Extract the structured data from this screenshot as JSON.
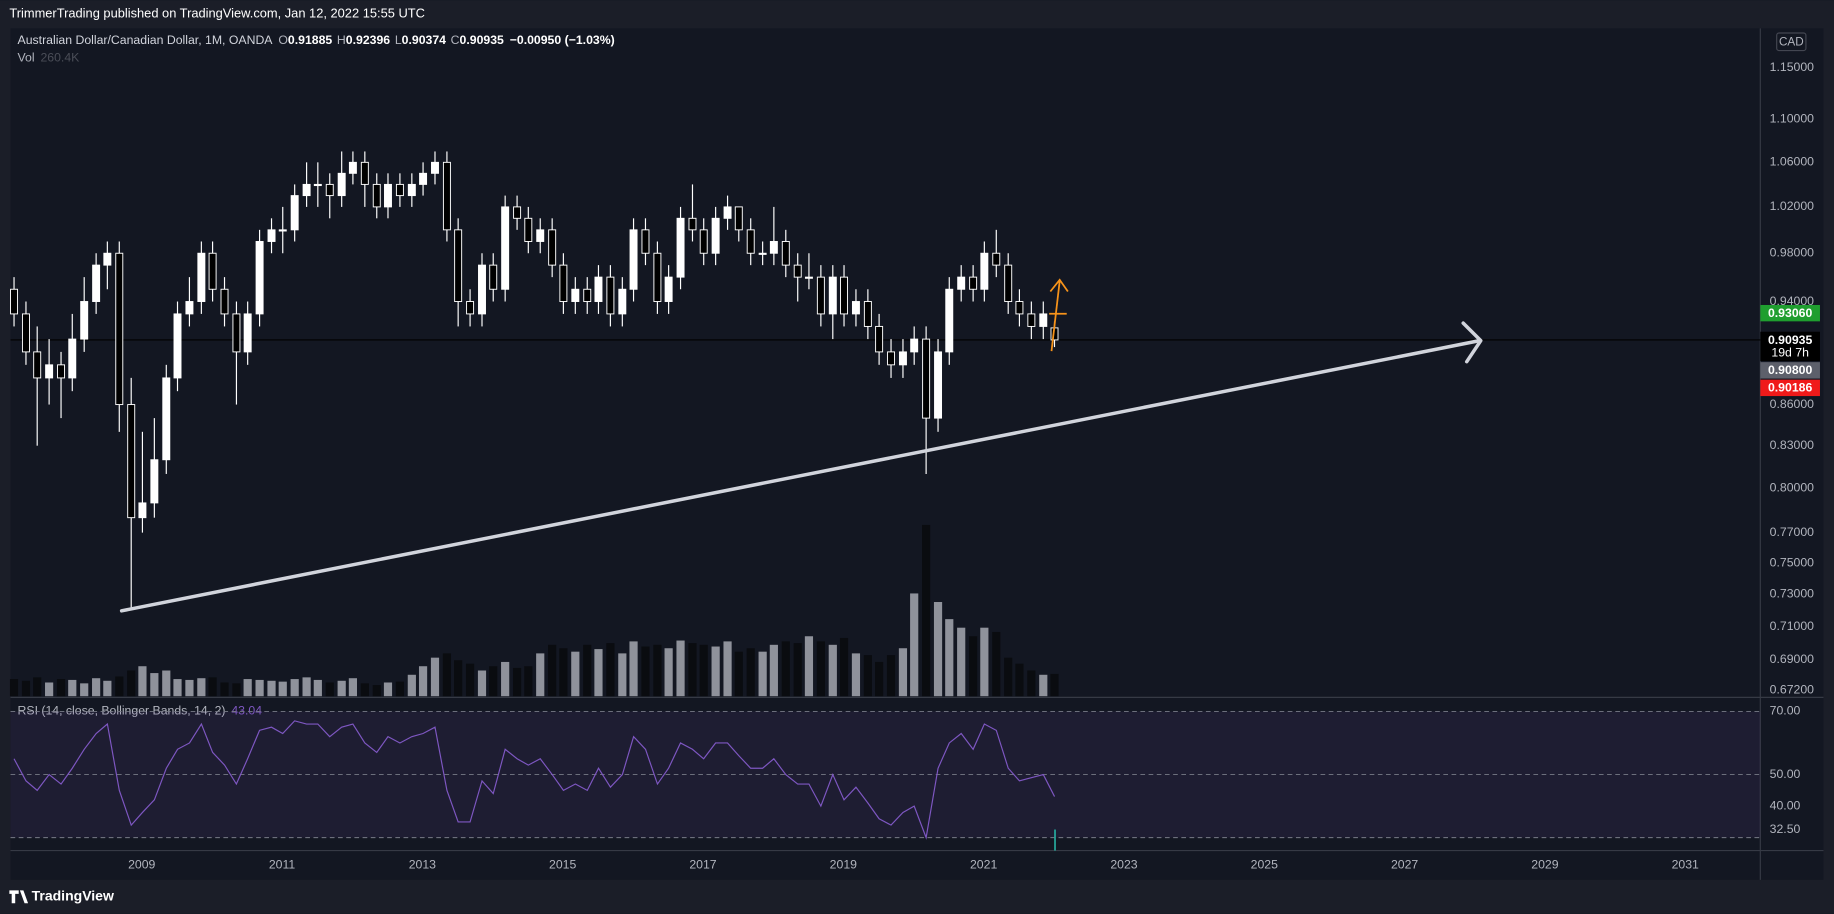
{
  "header": {
    "published": "TrimmerTrading published on TradingView.com, Jan 12, 2022 15:55 UTC"
  },
  "footer": {
    "brand": "TradingView"
  },
  "chart_data": {
    "type": "candlestick",
    "title": "Australian Dollar/Canadian Dollar, 1M, OANDA",
    "ohlc_labels": [
      "O",
      "H",
      "L",
      "C"
    ],
    "change_label": "−0.00950 (−1.03%)",
    "currency": "CAD",
    "countdown": "19d 7h",
    "up_color": "#ffffff",
    "down_color": "#000000",
    "wick_color": "#ffffff",
    "log_scale": true,
    "grid": false,
    "xlim": [
      2007.13,
      2032.07
    ],
    "xticks": [
      2009,
      2011,
      2013,
      2015,
      2017,
      2019,
      2021,
      2023,
      2025,
      2027,
      2029,
      2031
    ],
    "ylim": [
      0.6686,
      1.19
    ],
    "yticks": [
      {
        "value": 1.15,
        "label": "1.15000"
      },
      {
        "value": 1.1,
        "label": "1.10000"
      },
      {
        "value": 1.06,
        "label": "1.06000"
      },
      {
        "value": 1.02,
        "label": "1.02000"
      },
      {
        "value": 0.98,
        "label": "0.98000"
      },
      {
        "value": 0.94,
        "label": "0.94000"
      },
      {
        "value": 0.86,
        "label": "0.86000"
      },
      {
        "value": 0.83,
        "label": "0.83000"
      },
      {
        "value": 0.8,
        "label": "0.80000"
      },
      {
        "value": 0.77,
        "label": "0.77000"
      },
      {
        "value": 0.75,
        "label": "0.75000"
      },
      {
        "value": 0.73,
        "label": "0.73000"
      },
      {
        "value": 0.71,
        "label": "0.71000"
      },
      {
        "value": 0.69,
        "label": "0.69000"
      },
      {
        "value": 0.672,
        "label": "0.67200"
      }
    ],
    "price_labels": [
      {
        "value": 0.9306,
        "label": "0.93060",
        "color": "#1f9e2f"
      },
      {
        "value": 0.908,
        "label": "0.90800",
        "color": "#5d606b"
      },
      {
        "value": 0.90186,
        "label": "0.90186",
        "color": "#f01a1a"
      }
    ],
    "x": [
      2007.18,
      2007.35,
      2007.51,
      2007.68,
      2007.85,
      2008.01,
      2008.18,
      2008.35,
      2008.51,
      2008.68,
      2008.85,
      2009.01,
      2009.18,
      2009.35,
      2009.51,
      2009.68,
      2009.85,
      2010.01,
      2010.18,
      2010.35,
      2010.51,
      2010.68,
      2010.85,
      2011.01,
      2011.18,
      2011.35,
      2011.51,
      2011.68,
      2011.85,
      2012.01,
      2012.18,
      2012.35,
      2012.51,
      2012.68,
      2012.85,
      2013.01,
      2013.18,
      2013.35,
      2013.51,
      2013.68,
      2013.85,
      2014.01,
      2014.18,
      2014.35,
      2014.51,
      2014.68,
      2014.85,
      2015.01,
      2015.18,
      2015.35,
      2015.51,
      2015.68,
      2015.85,
      2016.01,
      2016.18,
      2016.35,
      2016.51,
      2016.68,
      2016.85,
      2017.01,
      2017.18,
      2017.35,
      2017.51,
      2017.68,
      2017.85,
      2018.01,
      2018.18,
      2018.35,
      2018.51,
      2018.68,
      2018.85,
      2019.01,
      2019.18,
      2019.35,
      2019.51,
      2019.68,
      2019.85,
      2020.01,
      2020.18,
      2020.35,
      2020.51,
      2020.68,
      2020.85,
      2021.01,
      2021.18,
      2021.35,
      2021.51,
      2021.68,
      2021.85,
      2022.01
    ],
    "open": [
      0.95,
      0.93,
      0.9,
      0.88,
      0.89,
      0.88,
      0.91,
      0.94,
      0.97,
      0.98,
      0.86,
      0.78,
      0.79,
      0.82,
      0.88,
      0.93,
      0.94,
      0.98,
      0.95,
      0.93,
      0.9,
      0.93,
      0.99,
      1.0,
      1.0,
      1.03,
      1.04,
      1.04,
      1.03,
      1.05,
      1.06,
      1.04,
      1.02,
      1.04,
      1.03,
      1.04,
      1.05,
      1.06,
      1.0,
      0.94,
      0.93,
      0.97,
      0.95,
      1.02,
      1.01,
      0.99,
      1.0,
      0.97,
      0.94,
      0.95,
      0.94,
      0.96,
      0.93,
      0.95,
      1.0,
      0.98,
      0.94,
      0.96,
      1.01,
      1.0,
      0.98,
      1.01,
      1.02,
      1.0,
      0.98,
      0.98,
      0.99,
      0.97,
      0.96,
      0.96,
      0.93,
      0.96,
      0.93,
      0.94,
      0.92,
      0.9,
      0.89,
      0.9,
      0.91,
      0.85,
      0.9,
      0.95,
      0.96,
      0.95,
      0.98,
      0.97,
      0.94,
      0.93,
      0.92,
      0.91885
    ],
    "high": [
      0.96,
      0.94,
      0.92,
      0.91,
      0.9,
      0.93,
      0.96,
      0.98,
      0.99,
      0.99,
      0.88,
      0.84,
      0.85,
      0.89,
      0.94,
      0.96,
      0.99,
      0.99,
      0.96,
      0.94,
      0.94,
      1.0,
      1.01,
      1.02,
      1.04,
      1.06,
      1.06,
      1.05,
      1.07,
      1.07,
      1.07,
      1.05,
      1.05,
      1.05,
      1.05,
      1.06,
      1.07,
      1.07,
      1.01,
      0.95,
      0.98,
      0.98,
      1.03,
      1.03,
      1.02,
      1.01,
      1.01,
      0.98,
      0.96,
      0.96,
      0.97,
      0.97,
      0.96,
      1.01,
      1.01,
      0.99,
      0.97,
      1.02,
      1.04,
      1.01,
      1.02,
      1.03,
      1.02,
      1.01,
      0.99,
      1.02,
      1.0,
      0.98,
      0.98,
      0.97,
      0.97,
      0.97,
      0.95,
      0.95,
      0.93,
      0.91,
      0.91,
      0.92,
      0.92,
      0.91,
      0.96,
      0.97,
      0.97,
      0.99,
      1.0,
      0.98,
      0.95,
      0.94,
      0.94,
      0.92396
    ],
    "low": [
      0.92,
      0.89,
      0.83,
      0.86,
      0.85,
      0.87,
      0.9,
      0.93,
      0.95,
      0.84,
      0.72,
      0.77,
      0.78,
      0.81,
      0.87,
      0.92,
      0.93,
      0.94,
      0.92,
      0.86,
      0.89,
      0.92,
      0.98,
      0.98,
      0.99,
      1.02,
      1.02,
      1.01,
      1.02,
      1.04,
      1.02,
      1.01,
      1.01,
      1.02,
      1.02,
      1.03,
      1.04,
      0.99,
      0.92,
      0.92,
      0.92,
      0.94,
      0.94,
      1.0,
      0.98,
      0.98,
      0.96,
      0.93,
      0.93,
      0.93,
      0.93,
      0.92,
      0.92,
      0.94,
      0.97,
      0.93,
      0.93,
      0.95,
      0.99,
      0.97,
      0.97,
      1.0,
      0.99,
      0.97,
      0.97,
      0.97,
      0.96,
      0.94,
      0.95,
      0.92,
      0.91,
      0.92,
      0.92,
      0.91,
      0.89,
      0.88,
      0.88,
      0.89,
      0.81,
      0.84,
      0.89,
      0.94,
      0.94,
      0.94,
      0.96,
      0.93,
      0.92,
      0.91,
      0.91,
      0.90374
    ],
    "close": [
      0.93,
      0.9,
      0.88,
      0.89,
      0.88,
      0.91,
      0.94,
      0.97,
      0.98,
      0.86,
      0.78,
      0.79,
      0.82,
      0.88,
      0.93,
      0.94,
      0.98,
      0.95,
      0.93,
      0.9,
      0.93,
      0.99,
      1.0,
      1.0,
      1.03,
      1.04,
      1.04,
      1.03,
      1.05,
      1.06,
      1.04,
      1.02,
      1.04,
      1.03,
      1.04,
      1.05,
      1.06,
      1.0,
      0.94,
      0.93,
      0.97,
      0.95,
      1.02,
      1.01,
      0.99,
      1.0,
      0.97,
      0.94,
      0.95,
      0.94,
      0.96,
      0.93,
      0.95,
      1.0,
      0.98,
      0.94,
      0.96,
      1.01,
      1.0,
      0.98,
      1.01,
      1.02,
      1.0,
      0.98,
      0.98,
      0.99,
      0.97,
      0.96,
      0.96,
      0.93,
      0.96,
      0.93,
      0.94,
      0.92,
      0.9,
      0.89,
      0.9,
      0.91,
      0.85,
      0.9,
      0.95,
      0.96,
      0.95,
      0.98,
      0.97,
      0.94,
      0.93,
      0.92,
      0.93,
      0.90935
    ],
    "volume": {
      "label": "Vol",
      "value_label": "260.4K",
      "ylim": [
        0,
        7800
      ],
      "up_color": "#8f929b",
      "down_color": "#0a0c10",
      "values": [
        200,
        180,
        220,
        160,
        200,
        190,
        150,
        210,
        180,
        230,
        300,
        350,
        270,
        300,
        200,
        190,
        210,
        220,
        160,
        150,
        200,
        190,
        180,
        170,
        200,
        220,
        190,
        160,
        180,
        210,
        150,
        130,
        160,
        170,
        250,
        350,
        450,
        500,
        420,
        380,
        300,
        350,
        400,
        330,
        350,
        500,
        600,
        560,
        520,
        600,
        550,
        620,
        500,
        640,
        580,
        600,
        560,
        650,
        620,
        600,
        580,
        640,
        520,
        560,
        520,
        600,
        640,
        620,
        700,
        640,
        600,
        680,
        500,
        480,
        400,
        480,
        560,
        1200,
        2000,
        1100,
        900,
        800,
        700,
        800,
        750,
        450,
        380,
        300,
        250,
        260.4
      ]
    },
    "rsi": {
      "legend": "RSI (14, close, Bollinger Bands, 14, 2)",
      "color": "#7e57c2",
      "ylim": [
        25.9,
        74.1
      ],
      "yticks": [
        {
          "value": 70,
          "label": "70.00"
        },
        {
          "value": 50,
          "label": "50.00"
        },
        {
          "value": 40,
          "label": "40.00"
        },
        {
          "value": 32.5,
          "label": "32.50"
        }
      ],
      "levels": [
        70,
        50,
        30
      ],
      "values": [
        55,
        48,
        45,
        50,
        47,
        52,
        58,
        63,
        66,
        45,
        34,
        38,
        42,
        52,
        58,
        60,
        66,
        57,
        53,
        47,
        55,
        64,
        65,
        63,
        67,
        66,
        66,
        62,
        65,
        66,
        60,
        57,
        62,
        60,
        62,
        63,
        65,
        45,
        35,
        35,
        48,
        44,
        58,
        55,
        53,
        55,
        50,
        45,
        47,
        45,
        52,
        46,
        50,
        62,
        58,
        47,
        52,
        60,
        58,
        55,
        60,
        60,
        56,
        52,
        52,
        55,
        50,
        47,
        47,
        40,
        50,
        42,
        46,
        41,
        36,
        34,
        38,
        40,
        30,
        52,
        60,
        63,
        58,
        66,
        64,
        52,
        48,
        49,
        50,
        43.04
      ]
    }
  }
}
